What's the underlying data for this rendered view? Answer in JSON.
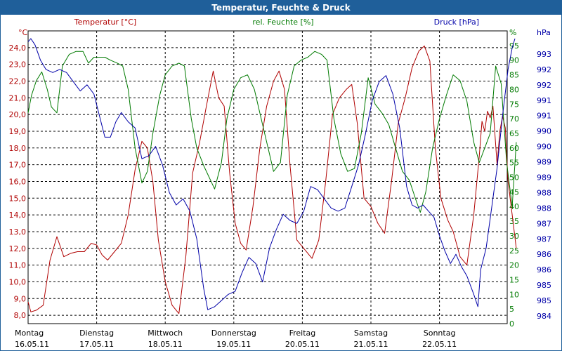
{
  "chart_data": {
    "type": "line",
    "title": "Temperatur, Feuchte & Druck",
    "x_ticks": [
      {
        "day": "Montag",
        "date": "16.05.11"
      },
      {
        "day": "Dienstag",
        "date": "17.05.11"
      },
      {
        "day": "Mittwoch",
        "date": "18.05.11"
      },
      {
        "day": "Donnerstag",
        "date": "19.05.11"
      },
      {
        "day": "Freitag",
        "date": "20.05.11"
      },
      {
        "day": "Samstag",
        "date": "21.05.11"
      },
      {
        "day": "Sonntag",
        "date": "22.05.11"
      }
    ],
    "x_range": [
      0,
      7
    ],
    "axes": {
      "temperature": {
        "unit": "°C",
        "range": [
          7.5,
          25.0
        ],
        "ticks": [
          "8,0",
          "9,0",
          "10,0",
          "11,0",
          "12,0",
          "13,0",
          "14,0",
          "15,0",
          "16,0",
          "17,0",
          "18,0",
          "19,0",
          "20,0",
          "21,0",
          "22,0",
          "23,0",
          "24,0"
        ]
      },
      "humidity": {
        "unit": "%",
        "range": [
          0,
          100
        ],
        "ticks": [
          "0",
          "5",
          "10",
          "15",
          "20",
          "25",
          "30",
          "35",
          "40",
          "45",
          "50",
          "55",
          "60",
          "65",
          "70",
          "75",
          "80",
          "85",
          "90",
          "95"
        ]
      },
      "pressure": {
        "unit": "hPa",
        "range": [
          983.75,
          993.25
        ],
        "ticks": [
          "984",
          "985",
          "985",
          "986",
          "986",
          "987",
          "987",
          "988",
          "988",
          "989",
          "989",
          "990",
          "990",
          "991",
          "991",
          "992",
          "992",
          "993"
        ]
      }
    },
    "grid": true,
    "series": [
      {
        "name": "Temperatur [°C]",
        "axis": "temperature",
        "color": "#b00000",
        "points": [
          [
            0.0,
            8.8
          ],
          [
            0.04,
            8.2
          ],
          [
            0.12,
            8.3
          ],
          [
            0.22,
            8.6
          ],
          [
            0.32,
            11.3
          ],
          [
            0.42,
            12.7
          ],
          [
            0.52,
            11.5
          ],
          [
            0.62,
            11.7
          ],
          [
            0.72,
            11.8
          ],
          [
            0.82,
            11.8
          ],
          [
            0.92,
            12.3
          ],
          [
            1.0,
            12.2
          ],
          [
            1.08,
            11.6
          ],
          [
            1.16,
            11.3
          ],
          [
            1.26,
            11.8
          ],
          [
            1.36,
            12.3
          ],
          [
            1.46,
            14.0
          ],
          [
            1.56,
            16.7
          ],
          [
            1.66,
            18.4
          ],
          [
            1.74,
            18.0
          ],
          [
            1.82,
            16.0
          ],
          [
            1.9,
            12.5
          ],
          [
            2.0,
            10.0
          ],
          [
            2.1,
            8.6
          ],
          [
            2.2,
            8.1
          ],
          [
            2.3,
            11.5
          ],
          [
            2.4,
            16.5
          ],
          [
            2.5,
            18.3
          ],
          [
            2.6,
            20.5
          ],
          [
            2.7,
            22.6
          ],
          [
            2.78,
            21.0
          ],
          [
            2.86,
            20.5
          ],
          [
            2.94,
            16.5
          ],
          [
            3.02,
            13.5
          ],
          [
            3.1,
            12.3
          ],
          [
            3.18,
            11.9
          ],
          [
            3.28,
            14.5
          ],
          [
            3.38,
            18.0
          ],
          [
            3.48,
            20.5
          ],
          [
            3.58,
            22.0
          ],
          [
            3.66,
            22.6
          ],
          [
            3.74,
            21.5
          ],
          [
            3.82,
            17.0
          ],
          [
            3.92,
            12.5
          ],
          [
            4.02,
            12.0
          ],
          [
            4.14,
            11.4
          ],
          [
            4.24,
            12.5
          ],
          [
            4.34,
            16.0
          ],
          [
            4.44,
            20.0
          ],
          [
            4.54,
            21.0
          ],
          [
            4.64,
            21.5
          ],
          [
            4.72,
            21.8
          ],
          [
            4.8,
            19.5
          ],
          [
            4.9,
            15.0
          ],
          [
            5.0,
            14.5
          ],
          [
            5.1,
            13.5
          ],
          [
            5.2,
            12.9
          ],
          [
            5.3,
            16.0
          ],
          [
            5.4,
            19.5
          ],
          [
            5.5,
            21.0
          ],
          [
            5.6,
            22.8
          ],
          [
            5.7,
            23.8
          ],
          [
            5.78,
            24.1
          ],
          [
            5.86,
            23.2
          ],
          [
            5.94,
            18.0
          ],
          [
            6.02,
            15.0
          ],
          [
            6.12,
            13.7
          ],
          [
            6.2,
            13.0
          ],
          [
            6.3,
            11.5
          ],
          [
            6.4,
            11.0
          ],
          [
            6.5,
            14.0
          ],
          [
            6.58,
            17.5
          ],
          [
            6.62,
            19.6
          ],
          [
            6.66,
            19.0
          ],
          [
            6.7,
            20.2
          ],
          [
            6.74,
            19.8
          ],
          [
            6.78,
            20.5
          ],
          [
            6.84,
            17.0
          ],
          [
            6.88,
            19.0
          ],
          [
            6.92,
            19.9
          ],
          [
            6.96,
            19.2
          ],
          [
            7.0,
            16.0
          ],
          [
            7.06,
            14.0
          ],
          [
            7.12,
            12.0
          ]
        ]
      },
      {
        "name": "rel. Feuchte [%]",
        "axis": "humidity",
        "color": "#007a00",
        "points": [
          [
            0.0,
            72
          ],
          [
            0.05,
            78
          ],
          [
            0.12,
            83
          ],
          [
            0.2,
            86
          ],
          [
            0.28,
            80
          ],
          [
            0.34,
            74
          ],
          [
            0.42,
            72
          ],
          [
            0.5,
            88
          ],
          [
            0.6,
            92
          ],
          [
            0.7,
            93
          ],
          [
            0.8,
            93
          ],
          [
            0.88,
            89
          ],
          [
            0.96,
            91
          ],
          [
            1.04,
            91
          ],
          [
            1.12,
            91
          ],
          [
            1.2,
            90
          ],
          [
            1.3,
            89
          ],
          [
            1.38,
            88
          ],
          [
            1.46,
            80
          ],
          [
            1.56,
            60
          ],
          [
            1.66,
            48
          ],
          [
            1.74,
            52
          ],
          [
            1.82,
            65
          ],
          [
            1.92,
            78
          ],
          [
            2.0,
            85
          ],
          [
            2.1,
            88
          ],
          [
            2.2,
            89
          ],
          [
            2.28,
            88
          ],
          [
            2.38,
            70
          ],
          [
            2.46,
            60
          ],
          [
            2.56,
            54
          ],
          [
            2.64,
            50
          ],
          [
            2.72,
            46
          ],
          [
            2.82,
            55
          ],
          [
            2.9,
            70
          ],
          [
            3.0,
            80
          ],
          [
            3.1,
            84
          ],
          [
            3.2,
            85
          ],
          [
            3.3,
            80
          ],
          [
            3.4,
            70
          ],
          [
            3.5,
            60
          ],
          [
            3.58,
            52
          ],
          [
            3.68,
            55
          ],
          [
            3.78,
            78
          ],
          [
            3.88,
            88
          ],
          [
            3.98,
            90
          ],
          [
            4.08,
            91
          ],
          [
            4.18,
            93
          ],
          [
            4.28,
            92
          ],
          [
            4.36,
            90
          ],
          [
            4.46,
            70
          ],
          [
            4.56,
            58
          ],
          [
            4.66,
            52
          ],
          [
            4.76,
            53
          ],
          [
            4.86,
            65
          ],
          [
            4.96,
            84
          ],
          [
            5.06,
            75
          ],
          [
            5.16,
            72
          ],
          [
            5.26,
            68
          ],
          [
            5.36,
            60
          ],
          [
            5.46,
            52
          ],
          [
            5.56,
            49
          ],
          [
            5.66,
            42
          ],
          [
            5.72,
            38
          ],
          [
            5.8,
            45
          ],
          [
            5.9,
            60
          ],
          [
            6.0,
            70
          ],
          [
            6.1,
            78
          ],
          [
            6.2,
            85
          ],
          [
            6.3,
            83
          ],
          [
            6.4,
            76
          ],
          [
            6.5,
            62
          ],
          [
            6.58,
            55
          ],
          [
            6.66,
            60
          ],
          [
            6.74,
            65
          ],
          [
            6.82,
            88
          ],
          [
            6.9,
            82
          ],
          [
            6.98,
            55
          ],
          [
            7.06,
            40
          ],
          [
            7.12,
            62
          ]
        ]
      },
      {
        "name": "Druck [hPa]",
        "axis": "pressure",
        "color": "#0000a8",
        "points": [
          [
            0.0,
            992.9
          ],
          [
            0.04,
            993.0
          ],
          [
            0.1,
            992.8
          ],
          [
            0.18,
            992.3
          ],
          [
            0.26,
            992.0
          ],
          [
            0.36,
            991.9
          ],
          [
            0.46,
            992.0
          ],
          [
            0.56,
            991.9
          ],
          [
            0.66,
            991.6
          ],
          [
            0.76,
            991.3
          ],
          [
            0.86,
            991.5
          ],
          [
            0.96,
            991.2
          ],
          [
            1.04,
            990.5
          ],
          [
            1.12,
            989.8
          ],
          [
            1.2,
            989.8
          ],
          [
            1.28,
            990.3
          ],
          [
            1.36,
            990.6
          ],
          [
            1.46,
            990.3
          ],
          [
            1.56,
            990.1
          ],
          [
            1.66,
            989.1
          ],
          [
            1.76,
            989.2
          ],
          [
            1.86,
            989.5
          ],
          [
            1.96,
            988.9
          ],
          [
            2.06,
            988.0
          ],
          [
            2.16,
            987.6
          ],
          [
            2.26,
            987.8
          ],
          [
            2.36,
            987.4
          ],
          [
            2.46,
            986.5
          ],
          [
            2.56,
            984.9
          ],
          [
            2.62,
            984.2
          ],
          [
            2.72,
            984.3
          ],
          [
            2.82,
            984.5
          ],
          [
            2.92,
            984.7
          ],
          [
            3.02,
            984.8
          ],
          [
            3.12,
            985.4
          ],
          [
            3.22,
            985.9
          ],
          [
            3.32,
            985.7
          ],
          [
            3.42,
            985.1
          ],
          [
            3.52,
            986.2
          ],
          [
            3.62,
            986.8
          ],
          [
            3.72,
            987.3
          ],
          [
            3.82,
            987.1
          ],
          [
            3.92,
            987.0
          ],
          [
            4.02,
            987.4
          ],
          [
            4.12,
            988.2
          ],
          [
            4.22,
            988.1
          ],
          [
            4.32,
            987.8
          ],
          [
            4.42,
            987.5
          ],
          [
            4.52,
            987.4
          ],
          [
            4.62,
            987.5
          ],
          [
            4.72,
            988.2
          ],
          [
            4.82,
            988.9
          ],
          [
            4.92,
            989.9
          ],
          [
            5.02,
            991.0
          ],
          [
            5.12,
            991.6
          ],
          [
            5.22,
            991.8
          ],
          [
            5.32,
            991.2
          ],
          [
            5.42,
            990.1
          ],
          [
            5.52,
            988.2
          ],
          [
            5.6,
            987.6
          ],
          [
            5.68,
            987.5
          ],
          [
            5.76,
            987.6
          ],
          [
            5.84,
            987.4
          ],
          [
            5.92,
            987.2
          ],
          [
            6.0,
            986.6
          ],
          [
            6.08,
            986.1
          ],
          [
            6.16,
            985.7
          ],
          [
            6.24,
            986.0
          ],
          [
            6.32,
            985.6
          ],
          [
            6.4,
            985.3
          ],
          [
            6.5,
            984.7
          ],
          [
            6.56,
            984.3
          ],
          [
            6.6,
            985.5
          ],
          [
            6.68,
            986.2
          ],
          [
            6.76,
            987.5
          ],
          [
            6.84,
            988.8
          ],
          [
            6.92,
            990.5
          ],
          [
            7.0,
            992.0
          ],
          [
            7.06,
            992.7
          ],
          [
            7.1,
            993.0
          ]
        ]
      }
    ]
  }
}
